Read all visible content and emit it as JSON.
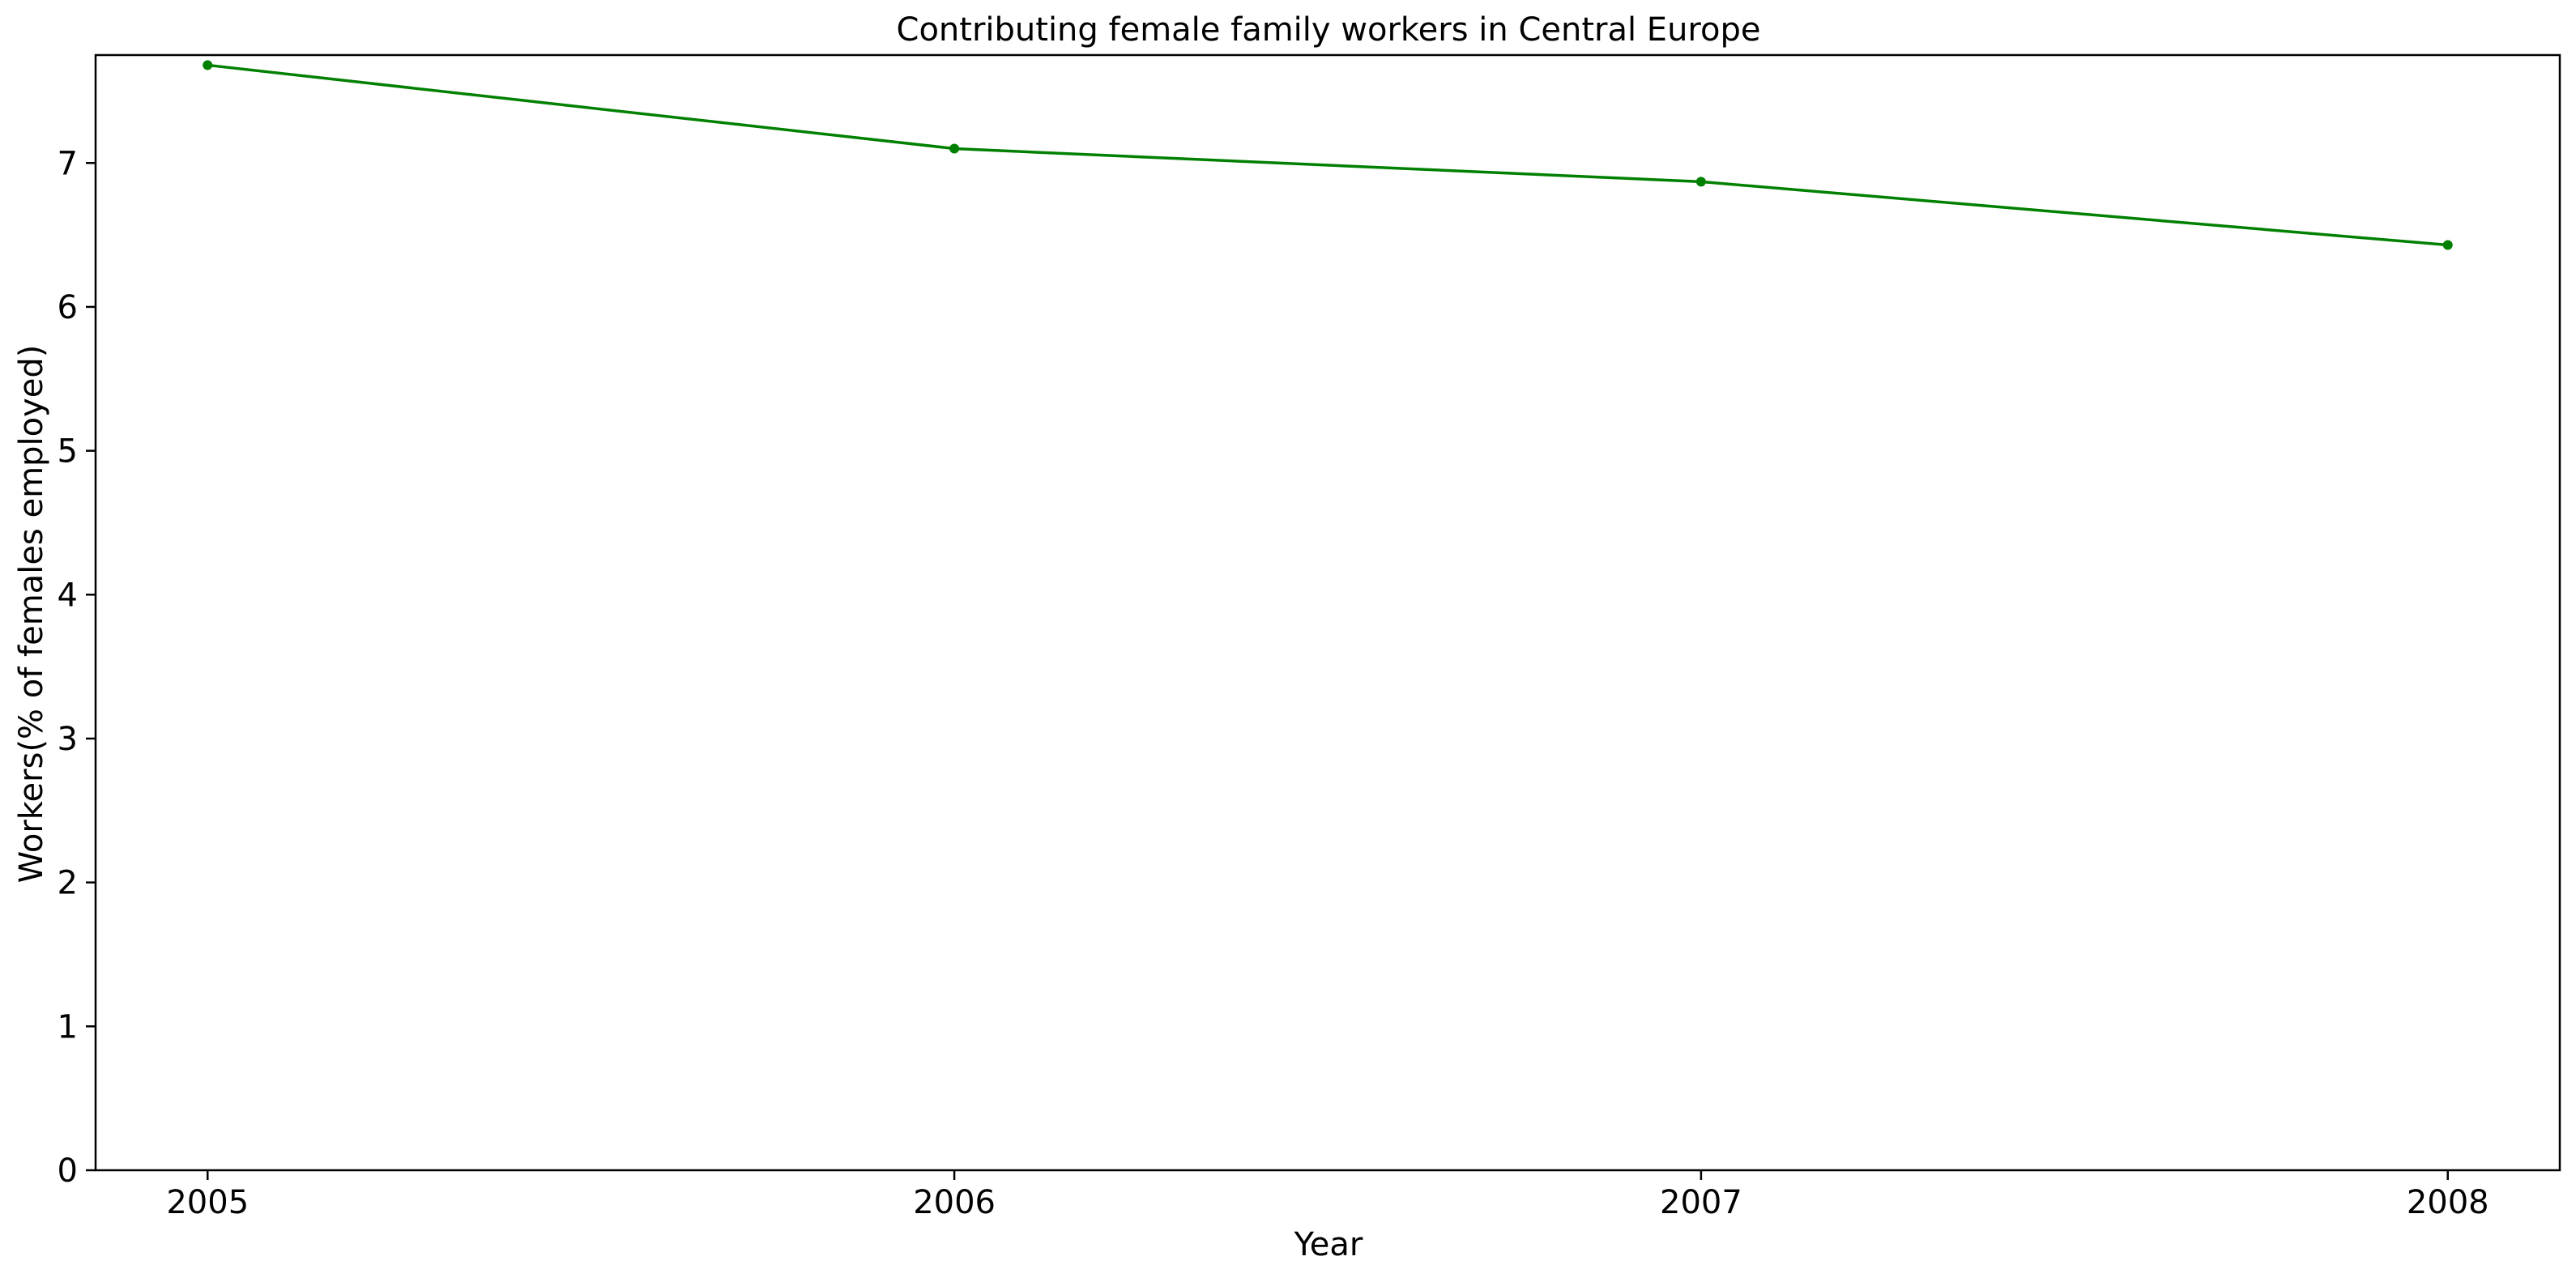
{
  "chart_data": {
    "type": "line",
    "title": "Contributing female family workers in Central Europe",
    "xlabel": "Year",
    "ylabel": "Workers(% of females employed)",
    "x": [
      2005,
      2006,
      2007,
      2008
    ],
    "series": [
      {
        "values": [
          7.68,
          7.1,
          6.87,
          6.43
        ],
        "color": "#008000",
        "marker": "circle"
      }
    ],
    "x_ticks": [
      "2005",
      "2006",
      "2007",
      "2008"
    ],
    "y_ticks": [
      "0",
      "1",
      "2",
      "3",
      "4",
      "5",
      "6",
      "7"
    ],
    "xlim": [
      2004.85,
      2008.15
    ],
    "ylim": [
      0,
      7.75
    ],
    "grid": false,
    "legend": "none"
  }
}
